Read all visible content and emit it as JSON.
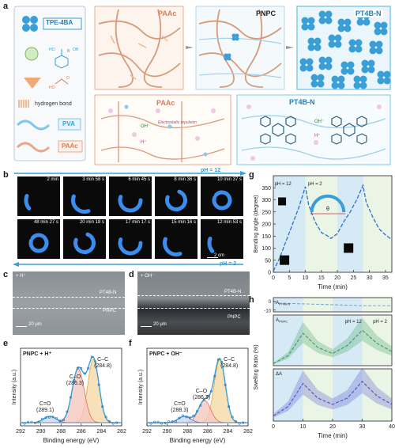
{
  "panel_a": {
    "label": "a",
    "legend": {
      "tpe": "TPE-4BA",
      "hbond": "hydrogen bond",
      "pva": "PVA",
      "paac": "PAAc",
      "formula_atoms": [
        "B",
        "HO",
        "OH",
        "HO",
        "O"
      ]
    },
    "top_boxes": [
      "PAAc",
      "PNPC",
      "PT4B-N"
    ],
    "bottom_boxes": [
      "PAAc",
      "PT4B-N"
    ],
    "ions": [
      "OH⁻",
      "H⁺",
      "OH⁻",
      "H⁺"
    ],
    "repulsion": "Electrostatic repulsion"
  },
  "panel_b": {
    "label": "b",
    "ph_top": "pH = 12",
    "ph_bottom": "pH = 2",
    "times_row1": [
      "2 min",
      "3 min 58 s",
      "6 min 45 s",
      "8 min 36 s",
      "10 min 37 s"
    ],
    "times_row2": [
      "48 min 27 s",
      "20 min 18 s",
      "17 min 17 s",
      "15 min 16 s",
      "12 min 53 s"
    ],
    "scale": "2 cm"
  },
  "panel_c": {
    "label": "c",
    "cond": "+ H⁺",
    "top": "PT4B-N",
    "bottom": "PNPC",
    "scale": "20 μm"
  },
  "panel_d": {
    "label": "d",
    "cond": "+ OH⁻",
    "top": "PT4B-N",
    "bottom": "PNPC",
    "scale": "20 μm"
  },
  "panel_e": {
    "label": "e",
    "title": "PNPC + H⁺",
    "ylabel": "Intensity (a.u.)",
    "xlabel": "Binding energy (eV)",
    "ticks": [
      "292",
      "290",
      "288",
      "286",
      "284",
      "282"
    ],
    "peaks": [
      {
        "name": "C–C",
        "value": "(284.8)"
      },
      {
        "name": "C–O",
        "value": "(286.3)"
      },
      {
        "name": "C=O",
        "value": "(289.1)"
      }
    ]
  },
  "panel_f": {
    "label": "f",
    "title": "PNPC + OH⁻",
    "ylabel": "Intensity (a.u.)",
    "xlabel": "Binding energy (eV)",
    "ticks": [
      "292",
      "290",
      "288",
      "286",
      "284",
      "282"
    ],
    "peaks": [
      {
        "name": "C–C",
        "value": "(284.8)"
      },
      {
        "name": "C–O",
        "value": "(286.3)"
      },
      {
        "name": "C=O",
        "value": "(288.3)"
      }
    ]
  },
  "panel_g": {
    "label": "g",
    "ylabel": "Bending angle (degree)",
    "xlabel": "Time (min)",
    "ph12": "pH = 12",
    "ph2": "pH = 2",
    "theta": "θ",
    "yticks": [
      "0",
      "50",
      "100",
      "150",
      "200",
      "250",
      "300",
      "350"
    ],
    "xticks": [
      "0",
      "5",
      "10",
      "15",
      "20",
      "25",
      "30",
      "35"
    ]
  },
  "panel_h": {
    "label": "h",
    "ylabel": "Swelling Ratio (%)",
    "xlabel": "Time (min)",
    "ph12": "pH = 12",
    "ph2": "pH = 2",
    "sub1": "A",
    "sub1_sub": "PT4B-N",
    "sub2": "A",
    "sub2_sub": "PNPC",
    "sub3": "ΔA",
    "yticks_top": [
      "0",
      "-10"
    ],
    "xticks": [
      "0",
      "10",
      "20",
      "30",
      "40"
    ]
  },
  "chart_data": [
    {
      "type": "line",
      "ref": "g",
      "xlabel": "Time (min)",
      "ylabel": "Bending angle (degree)",
      "xlim": [
        0,
        37
      ],
      "ylim": [
        0,
        400
      ],
      "series": [
        {
          "values": [
            [
              0,
              5
            ],
            [
              2,
              60
            ],
            [
              4,
              130
            ],
            [
              6,
              200
            ],
            [
              8,
              270
            ],
            [
              10,
              355
            ],
            [
              11,
              280
            ],
            [
              13,
              210
            ],
            [
              15,
              165
            ],
            [
              17,
              150
            ],
            [
              18,
              140
            ],
            [
              20,
              160
            ],
            [
              22,
              210
            ],
            [
              24,
              250
            ],
            [
              26,
              300
            ],
            [
              28,
              360
            ],
            [
              29,
              290
            ],
            [
              31,
              230
            ],
            [
              33,
              180
            ],
            [
              35,
              155
            ],
            [
              37,
              135
            ]
          ]
        }
      ]
    },
    {
      "type": "line",
      "ref": "h-PT4B-N",
      "ylim": [
        -12,
        4
      ],
      "series": [
        {
          "values": [
            [
              0,
              -2
            ],
            [
              10,
              -3
            ],
            [
              20,
              -4
            ],
            [
              30,
              -5
            ],
            [
              40,
              -5
            ]
          ]
        }
      ]
    },
    {
      "type": "line",
      "ref": "h-PNPC",
      "ylim": [
        0,
        50
      ],
      "series": [
        {
          "values": [
            [
              0,
              2
            ],
            [
              5,
              10
            ],
            [
              10,
              32
            ],
            [
              15,
              18
            ],
            [
              20,
              12
            ],
            [
              25,
              20
            ],
            [
              30,
              35
            ],
            [
              35,
              22
            ],
            [
              40,
              14
            ]
          ]
        }
      ]
    },
    {
      "type": "line",
      "ref": "h-dA",
      "ylim": [
        0,
        50
      ],
      "series": [
        {
          "values": [
            [
              0,
              5
            ],
            [
              5,
              14
            ],
            [
              10,
              36
            ],
            [
              15,
              22
            ],
            [
              20,
              16
            ],
            [
              25,
              22
            ],
            [
              30,
              38
            ],
            [
              35,
              24
            ],
            [
              40,
              16
            ]
          ]
        }
      ]
    }
  ]
}
